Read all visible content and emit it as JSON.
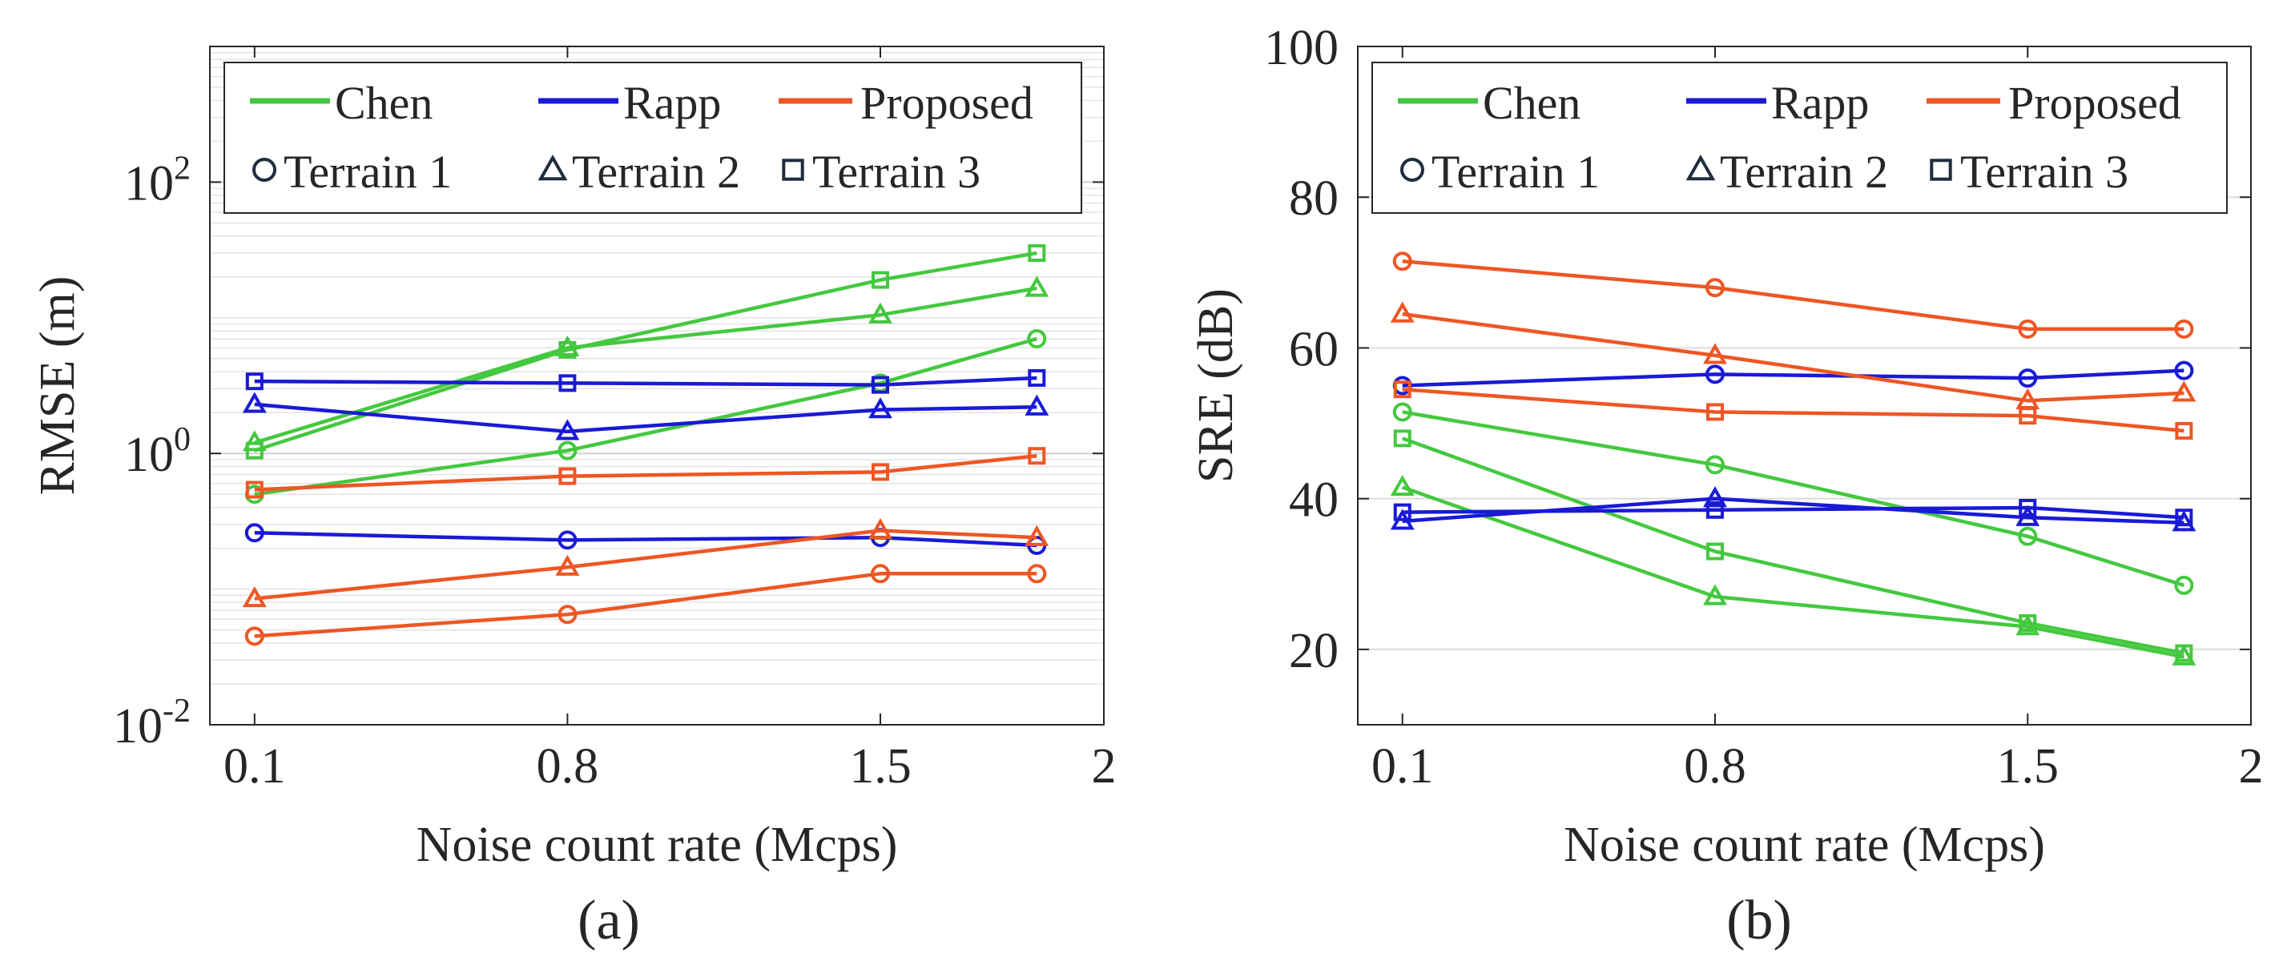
{
  "colors": {
    "Chen": "#44c83f",
    "Rapp": "#1a1ad6",
    "Proposed": "#ee5624",
    "legend_marker": "#1f2d3d"
  },
  "legend": {
    "methods": [
      "Chen",
      "Rapp",
      "Proposed"
    ],
    "terrains": [
      {
        "label": "Terrain 1",
        "marker": "circle"
      },
      {
        "label": "Terrain 2",
        "marker": "triangle"
      },
      {
        "label": "Terrain 3",
        "marker": "square"
      }
    ]
  },
  "chart_data": [
    {
      "type": "line",
      "panel_label": "(a)",
      "xlabel": "Noise count rate (Mcps)",
      "ylabel": "RMSE (m)",
      "yscale": "log",
      "xlim": [
        0.0,
        2.0
      ],
      "ylim": [
        0.01,
        1000
      ],
      "xticks": [
        0.1,
        0.8,
        1.5,
        2.0
      ],
      "xtick_labels": [
        "0.1",
        "0.8",
        "1.5",
        "2"
      ],
      "yticks": [
        0.01,
        1,
        100
      ],
      "ytick_labels": [
        {
          "base": "10",
          "exp": "-2"
        },
        {
          "base": "10",
          "exp": "0"
        },
        {
          "base": "10",
          "exp": "2"
        }
      ],
      "grid": "y-minor",
      "x": [
        0.1,
        0.8,
        1.5,
        1.85
      ],
      "series": [
        {
          "name": "Chen",
          "terrain": "Terrain 1",
          "marker": "circle",
          "values": [
            0.5,
            1.05,
            3.3,
            7.0
          ]
        },
        {
          "name": "Chen",
          "terrain": "Terrain 2",
          "marker": "triangle",
          "values": [
            1.2,
            6.0,
            10.5,
            16.5
          ]
        },
        {
          "name": "Chen",
          "terrain": "Terrain 3",
          "marker": "square",
          "values": [
            1.05,
            5.8,
            19.0,
            30.0
          ]
        },
        {
          "name": "Rapp",
          "terrain": "Terrain 1",
          "marker": "circle",
          "values": [
            0.26,
            0.23,
            0.24,
            0.21
          ]
        },
        {
          "name": "Rapp",
          "terrain": "Terrain 2",
          "marker": "triangle",
          "values": [
            2.3,
            1.45,
            2.1,
            2.2
          ]
        },
        {
          "name": "Rapp",
          "terrain": "Terrain 3",
          "marker": "square",
          "values": [
            3.4,
            3.3,
            3.2,
            3.6
          ]
        },
        {
          "name": "Proposed",
          "terrain": "Terrain 1",
          "marker": "circle",
          "values": [
            0.045,
            0.065,
            0.13,
            0.13
          ]
        },
        {
          "name": "Proposed",
          "terrain": "Terrain 2",
          "marker": "triangle",
          "values": [
            0.085,
            0.145,
            0.27,
            0.24
          ]
        },
        {
          "name": "Proposed",
          "terrain": "Terrain 3",
          "marker": "square",
          "values": [
            0.54,
            0.68,
            0.73,
            0.96
          ]
        }
      ]
    },
    {
      "type": "line",
      "panel_label": "(b)",
      "xlabel": "Noise count rate (Mcps)",
      "ylabel": "SRE (dB)",
      "yscale": "linear",
      "xlim": [
        0.0,
        2.0
      ],
      "ylim": [
        10,
        100
      ],
      "xticks": [
        0.1,
        0.8,
        1.5,
        2.0
      ],
      "xtick_labels": [
        "0.1",
        "0.8",
        "1.5",
        "2"
      ],
      "yticks": [
        20,
        40,
        60,
        80,
        100
      ],
      "ytick_labels": [
        "20",
        "40",
        "60",
        "80",
        "100"
      ],
      "grid": "y-major",
      "x": [
        0.1,
        0.8,
        1.5,
        1.85
      ],
      "series": [
        {
          "name": "Chen",
          "terrain": "Terrain 1",
          "marker": "circle",
          "values": [
            51.5,
            44.5,
            35.0,
            28.5
          ]
        },
        {
          "name": "Chen",
          "terrain": "Terrain 2",
          "marker": "triangle",
          "values": [
            41.5,
            27.0,
            23.0,
            19.0
          ]
        },
        {
          "name": "Chen",
          "terrain": "Terrain 3",
          "marker": "square",
          "values": [
            48.0,
            33.0,
            23.5,
            19.5
          ]
        },
        {
          "name": "Rapp",
          "terrain": "Terrain 1",
          "marker": "circle",
          "values": [
            55.0,
            56.5,
            56.0,
            57.0
          ]
        },
        {
          "name": "Rapp",
          "terrain": "Terrain 2",
          "marker": "triangle",
          "values": [
            37.0,
            40.0,
            37.5,
            36.8
          ]
        },
        {
          "name": "Rapp",
          "terrain": "Terrain 3",
          "marker": "square",
          "values": [
            38.2,
            38.5,
            38.8,
            37.5
          ]
        },
        {
          "name": "Proposed",
          "terrain": "Terrain 1",
          "marker": "circle",
          "values": [
            71.5,
            68.0,
            62.5,
            62.5
          ]
        },
        {
          "name": "Proposed",
          "terrain": "Terrain 2",
          "marker": "triangle",
          "values": [
            64.5,
            59.0,
            53.0,
            54.0
          ]
        },
        {
          "name": "Proposed",
          "terrain": "Terrain 3",
          "marker": "square",
          "values": [
            54.5,
            51.5,
            51.0,
            49.0
          ]
        }
      ]
    }
  ]
}
